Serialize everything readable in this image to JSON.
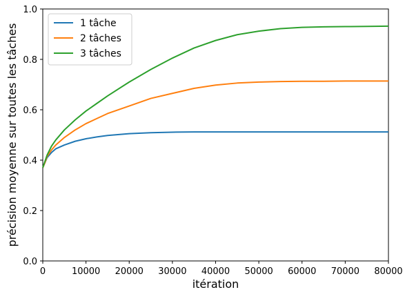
{
  "chart_data": {
    "type": "line",
    "xlabel": "itération",
    "ylabel": "précision moyenne sur toutes les tâches",
    "xlim": [
      0,
      80000
    ],
    "ylim": [
      0,
      1.0
    ],
    "xticks": [
      "0",
      "10000",
      "20000",
      "30000",
      "40000",
      "50000",
      "60000",
      "70000",
      "80000"
    ],
    "yticks": [
      "0.0",
      "0.2",
      "0.4",
      "0.6",
      "0.8",
      "1.0"
    ],
    "grid": false,
    "legend_position": "top-left",
    "x": [
      0,
      500,
      1000,
      2000,
      3000,
      5000,
      7500,
      10000,
      12500,
      15000,
      20000,
      25000,
      30000,
      35000,
      40000,
      45000,
      50000,
      55000,
      60000,
      65000,
      70000,
      75000,
      80000
    ],
    "series": [
      {
        "name": "1 tâche",
        "color": "#1f77b4",
        "values": [
          0.37,
          0.39,
          0.41,
          0.43,
          0.445,
          0.46,
          0.475,
          0.485,
          0.492,
          0.498,
          0.505,
          0.509,
          0.511,
          0.512,
          0.512,
          0.512,
          0.512,
          0.512,
          0.512,
          0.512,
          0.512,
          0.512,
          0.512
        ]
      },
      {
        "name": "2 tâches",
        "color": "#ff7f0e",
        "values": [
          0.37,
          0.39,
          0.415,
          0.44,
          0.46,
          0.49,
          0.52,
          0.545,
          0.565,
          0.585,
          0.615,
          0.645,
          0.665,
          0.685,
          0.698,
          0.706,
          0.71,
          0.712,
          0.713,
          0.713,
          0.714,
          0.714,
          0.714
        ]
      },
      {
        "name": "3 tâches",
        "color": "#2ca02c",
        "values": [
          0.37,
          0.395,
          0.42,
          0.455,
          0.48,
          0.52,
          0.56,
          0.595,
          0.625,
          0.655,
          0.71,
          0.76,
          0.805,
          0.845,
          0.875,
          0.898,
          0.912,
          0.922,
          0.927,
          0.929,
          0.93,
          0.931,
          0.932
        ]
      }
    ]
  }
}
